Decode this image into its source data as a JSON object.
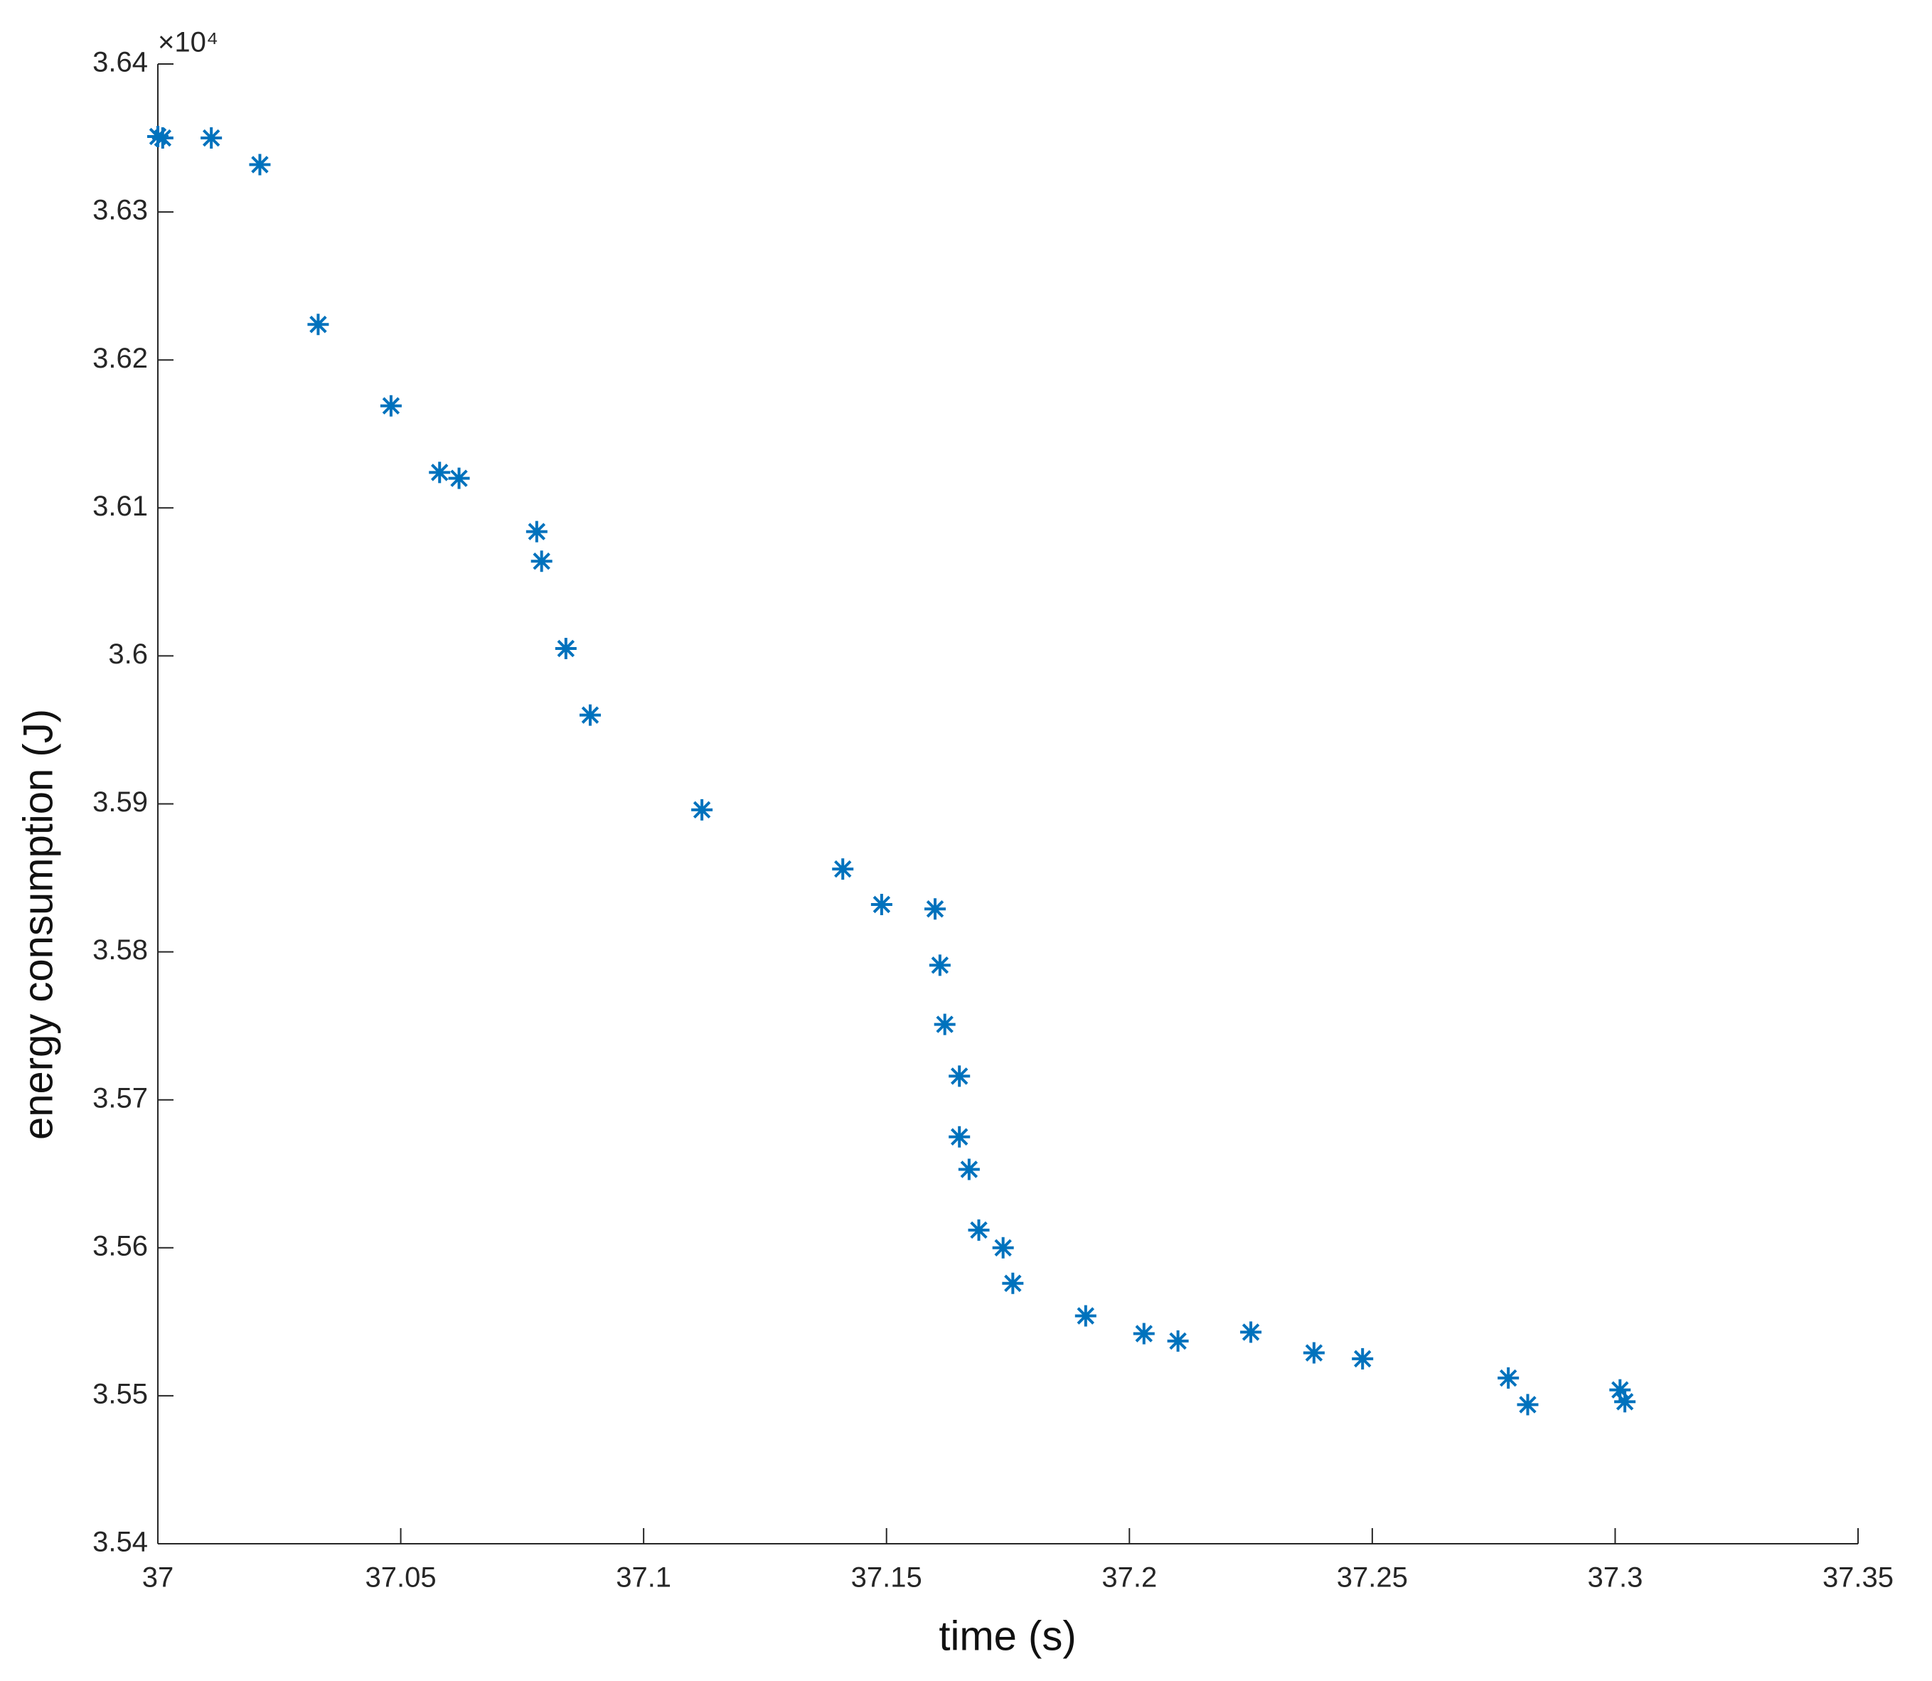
{
  "chart_data": {
    "type": "scatter",
    "x_label": "time (s)",
    "y_label": "energy consumption (J)",
    "y_exponent": "×10⁴",
    "color": "#0072bd",
    "marker": "*",
    "grid": false,
    "xlim": [
      37,
      37.35
    ],
    "xticks": [
      37,
      37.05,
      37.1,
      37.15,
      37.2,
      37.25,
      37.3,
      37.35
    ],
    "ylim": [
      3.54,
      3.64
    ],
    "yticks": [
      3.54,
      3.55,
      3.56,
      3.57,
      3.58,
      3.59,
      3.6,
      3.61,
      3.62,
      3.63,
      3.64
    ],
    "x": [
      37.0,
      37.001,
      37.011,
      37.021,
      37.033,
      37.048,
      37.058,
      37.062,
      37.078,
      37.079,
      37.084,
      37.089,
      37.112,
      37.141,
      37.149,
      37.16,
      37.161,
      37.162,
      37.165,
      37.165,
      37.167,
      37.169,
      37.174,
      37.176,
      37.191,
      37.203,
      37.21,
      37.225,
      37.238,
      37.248,
      37.278,
      37.282,
      37.301,
      37.302
    ],
    "values": [
      3.6351,
      3.635,
      3.635,
      3.6332,
      3.6224,
      3.6169,
      3.6124,
      3.612,
      3.6084,
      3.6064,
      3.6005,
      3.596,
      3.5896,
      3.5856,
      3.5832,
      3.5829,
      3.5791,
      3.5751,
      3.5716,
      3.5675,
      3.5653,
      3.5612,
      3.56,
      3.5576,
      3.5554,
      3.5542,
      3.5537,
      3.5543,
      3.5529,
      3.5525,
      3.5512,
      3.5494,
      3.5504,
      3.5496
    ]
  }
}
